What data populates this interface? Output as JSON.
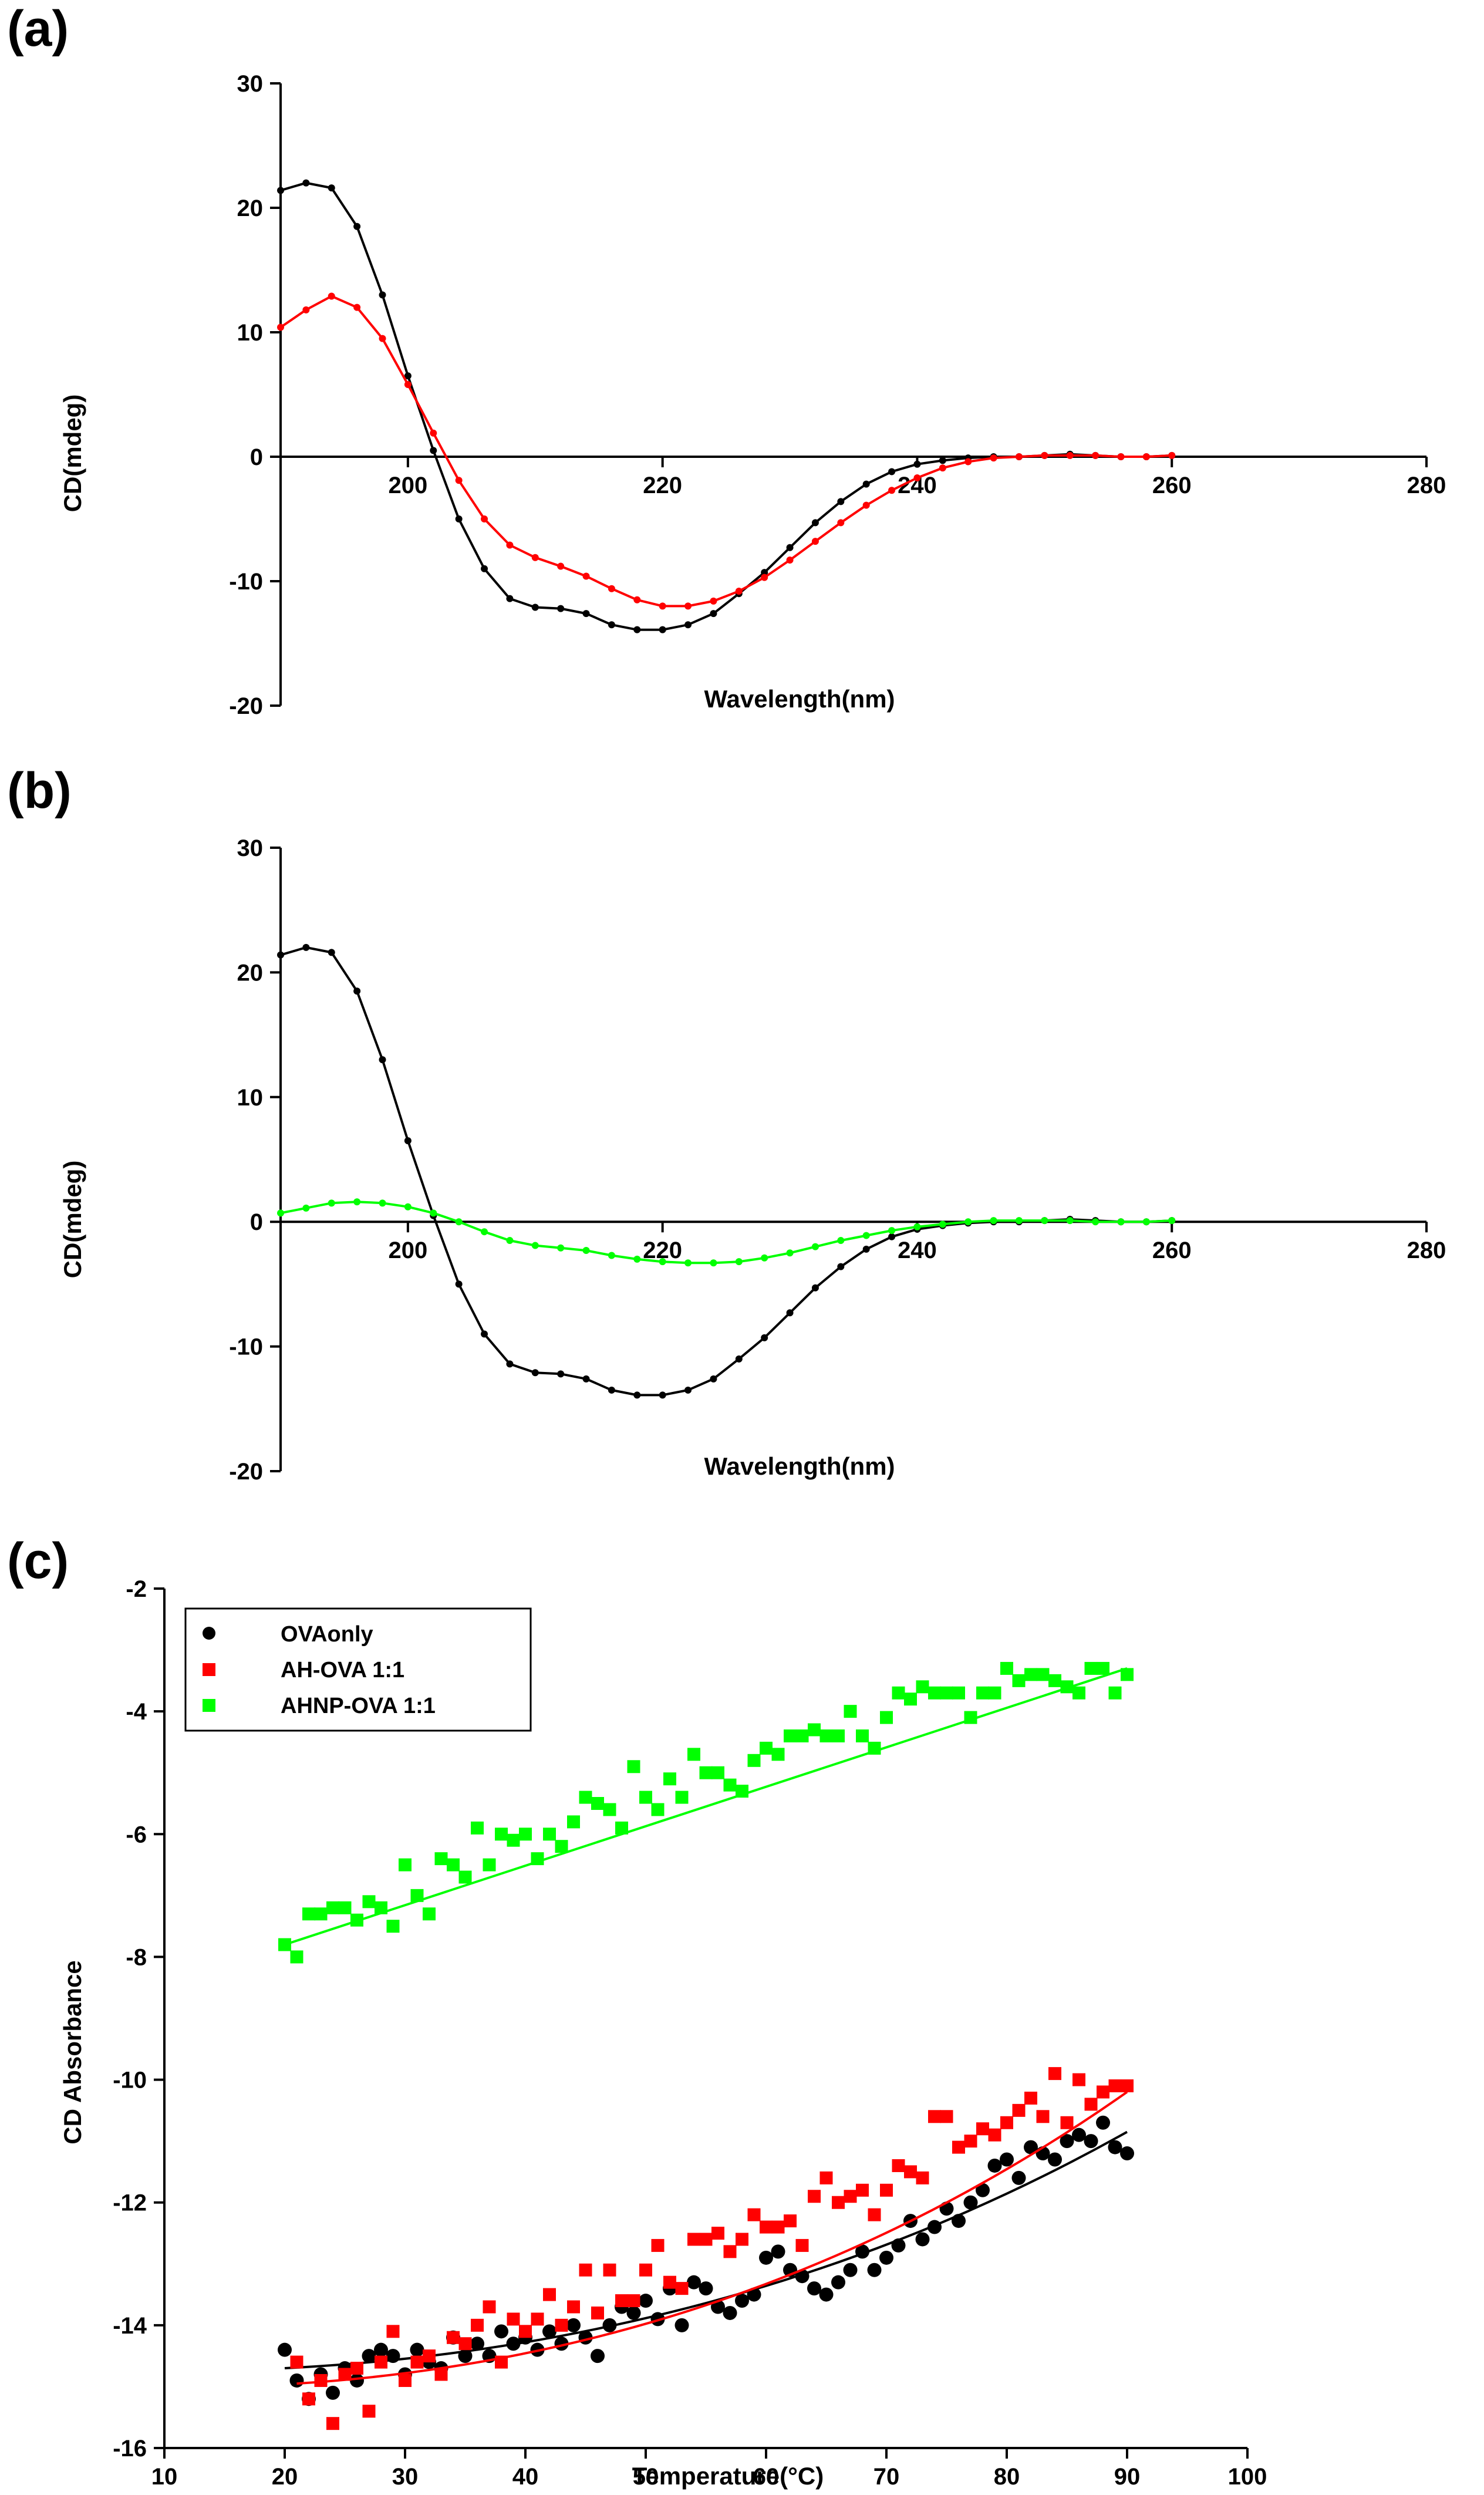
{
  "chart_data": [
    {
      "panel": "(a)",
      "type": "line",
      "xlabel": "Wavelength(nm)",
      "ylabel": "CD(mdeg)",
      "xlim": [
        190,
        280
      ],
      "ylim": [
        -20,
        30
      ],
      "xticks": [
        200,
        220,
        240,
        260,
        280
      ],
      "yticks": [
        -20,
        -10,
        0,
        10,
        20,
        30
      ],
      "series": [
        {
          "name": "OVA only",
          "color": "#000000",
          "x": [
            190,
            192,
            194,
            196,
            198,
            200,
            202,
            204,
            206,
            208,
            210,
            212,
            214,
            216,
            218,
            220,
            222,
            224,
            226,
            228,
            230,
            232,
            234,
            236,
            238,
            240,
            242,
            244,
            246,
            248,
            250,
            252,
            254,
            256,
            258,
            260
          ],
          "values": [
            21.4,
            22.0,
            21.6,
            18.5,
            13.0,
            6.5,
            0.5,
            -5.0,
            -9.0,
            -11.4,
            -12.1,
            -12.2,
            -12.6,
            -13.5,
            -13.9,
            -13.9,
            -13.5,
            -12.6,
            -11.0,
            -9.3,
            -7.3,
            -5.3,
            -3.6,
            -2.2,
            -1.2,
            -0.6,
            -0.3,
            -0.1,
            0.0,
            0.0,
            0.1,
            0.2,
            0.1,
            0.0,
            0.0,
            0.1
          ]
        },
        {
          "name": "AH-OVA 1:1",
          "color": "#ff0000",
          "x": [
            190,
            192,
            194,
            196,
            198,
            200,
            202,
            204,
            206,
            208,
            210,
            212,
            214,
            216,
            218,
            220,
            222,
            224,
            226,
            228,
            230,
            232,
            234,
            236,
            238,
            240,
            242,
            244,
            246,
            248,
            250,
            252,
            254,
            256,
            258,
            260
          ],
          "values": [
            10.4,
            11.8,
            12.9,
            12.0,
            9.5,
            5.8,
            1.9,
            -1.9,
            -5.0,
            -7.1,
            -8.1,
            -8.8,
            -9.6,
            -10.6,
            -11.5,
            -12.0,
            -12.0,
            -11.6,
            -10.8,
            -9.7,
            -8.3,
            -6.8,
            -5.3,
            -3.9,
            -2.7,
            -1.7,
            -0.9,
            -0.4,
            -0.1,
            0.0,
            0.1,
            0.1,
            0.1,
            0.0,
            0.0,
            0.1
          ]
        }
      ]
    },
    {
      "panel": "(b)",
      "type": "line",
      "xlabel": "Wavelength(nm)",
      "ylabel": "CD(mdeg)",
      "xlim": [
        190,
        280
      ],
      "ylim": [
        -20,
        30
      ],
      "xticks": [
        200,
        220,
        240,
        260,
        280
      ],
      "yticks": [
        -20,
        -10,
        0,
        10,
        20,
        30
      ],
      "series": [
        {
          "name": "OVA only",
          "color": "#000000",
          "x": [
            190,
            192,
            194,
            196,
            198,
            200,
            202,
            204,
            206,
            208,
            210,
            212,
            214,
            216,
            218,
            220,
            222,
            224,
            226,
            228,
            230,
            232,
            234,
            236,
            238,
            240,
            242,
            244,
            246,
            248,
            250,
            252,
            254,
            256,
            258,
            260
          ],
          "values": [
            21.4,
            22.0,
            21.6,
            18.5,
            13.0,
            6.5,
            0.5,
            -5.0,
            -9.0,
            -11.4,
            -12.1,
            -12.2,
            -12.6,
            -13.5,
            -13.9,
            -13.9,
            -13.5,
            -12.6,
            -11.0,
            -9.3,
            -7.3,
            -5.3,
            -3.6,
            -2.2,
            -1.2,
            -0.6,
            -0.3,
            -0.1,
            0.0,
            0.0,
            0.1,
            0.2,
            0.1,
            0.0,
            0.0,
            0.1
          ]
        },
        {
          "name": "AHNP-OVA 1:1",
          "color": "#00ff00",
          "x": [
            190,
            192,
            194,
            196,
            198,
            200,
            202,
            204,
            206,
            208,
            210,
            212,
            214,
            216,
            218,
            220,
            222,
            224,
            226,
            228,
            230,
            232,
            234,
            236,
            238,
            240,
            242,
            244,
            246,
            248,
            250,
            252,
            254,
            256,
            258,
            260
          ],
          "values": [
            0.7,
            1.1,
            1.5,
            1.6,
            1.5,
            1.2,
            0.7,
            0.0,
            -0.8,
            -1.5,
            -1.9,
            -2.1,
            -2.3,
            -2.7,
            -3.0,
            -3.2,
            -3.3,
            -3.3,
            -3.2,
            -2.9,
            -2.5,
            -2.0,
            -1.5,
            -1.1,
            -0.7,
            -0.4,
            -0.2,
            0.0,
            0.1,
            0.1,
            0.1,
            0.1,
            0.0,
            0.0,
            0.0,
            0.1
          ]
        }
      ]
    },
    {
      "panel": "(c)",
      "type": "scatter",
      "xlabel": "Temperature(°C)",
      "ylabel": "CD Absorbance",
      "xlim": [
        10,
        100
      ],
      "ylim": [
        -16,
        -2
      ],
      "xticks": [
        10,
        20,
        30,
        40,
        50,
        60,
        70,
        80,
        90,
        100
      ],
      "yticks": [
        -16,
        -14,
        -12,
        -10,
        -8,
        -6,
        -4,
        -2
      ],
      "legend": "top-left",
      "series": [
        {
          "name": "OVAonly",
          "color": "#000000",
          "marker": "circle",
          "fit": "quadratic",
          "fit_values": [
            -14.7,
            -10.85
          ],
          "x": [
            20,
            21,
            22,
            23,
            24,
            25,
            26,
            27,
            28,
            29,
            30,
            31,
            32,
            33,
            34,
            35,
            36,
            37,
            38,
            39,
            40,
            41,
            42,
            43,
            44,
            45,
            46,
            47,
            48,
            49,
            50,
            51,
            52,
            53,
            54,
            55,
            56,
            57,
            58,
            59,
            60,
            61,
            62,
            63,
            64,
            65,
            66,
            67,
            68,
            69,
            70,
            71,
            72,
            73,
            74,
            75,
            76,
            77,
            78,
            79,
            80,
            81,
            82,
            83,
            84,
            85,
            86,
            87,
            88,
            89,
            90
          ],
          "values": [
            -14.4,
            -14.9,
            -15.2,
            -14.8,
            -15.1,
            -14.7,
            -14.9,
            -14.5,
            -14.4,
            -14.5,
            -14.8,
            -14.4,
            -14.6,
            -14.7,
            -14.2,
            -14.5,
            -14.3,
            -14.5,
            -14.1,
            -14.3,
            -14.2,
            -14.4,
            -14.1,
            -14.3,
            -14.0,
            -14.2,
            -14.5,
            -14.0,
            -13.7,
            -13.8,
            -13.6,
            -13.9,
            -13.4,
            -14.0,
            -13.3,
            -13.4,
            -13.7,
            -13.8,
            -13.6,
            -13.5,
            -12.9,
            -12.8,
            -13.1,
            -13.2,
            -13.4,
            -13.5,
            -13.3,
            -13.1,
            -12.8,
            -13.1,
            -12.9,
            -12.7,
            -12.3,
            -12.6,
            -12.4,
            -12.1,
            -12.3,
            -12.0,
            -11.8,
            -11.4,
            -11.3,
            -11.6,
            -11.1,
            -11.2,
            -11.3,
            -11.0,
            -10.9,
            -11.0,
            -10.7,
            -11.1,
            -11.2
          ]
        },
        {
          "name": "AH-OVA 1:1",
          "color": "#ff0000",
          "marker": "square",
          "fit": "quadratic",
          "fit_values": [
            -14.95,
            -10.2
          ],
          "x": [
            21,
            22,
            23,
            24,
            25,
            26,
            27,
            28,
            29,
            30,
            31,
            32,
            33,
            34,
            35,
            36,
            37,
            38,
            39,
            40,
            41,
            42,
            43,
            44,
            45,
            46,
            47,
            48,
            49,
            50,
            51,
            52,
            53,
            54,
            55,
            56,
            57,
            58,
            59,
            60,
            61,
            62,
            63,
            64,
            65,
            66,
            67,
            68,
            69,
            70,
            71,
            72,
            73,
            74,
            75,
            76,
            77,
            78,
            79,
            80,
            81,
            82,
            83,
            84,
            85,
            86,
            87,
            88,
            89,
            90
          ],
          "values": [
            -14.6,
            -15.2,
            -14.9,
            -15.6,
            -14.8,
            -14.7,
            -15.4,
            -14.6,
            -14.1,
            -14.9,
            -14.6,
            -14.5,
            -14.8,
            -14.2,
            -14.3,
            -14.0,
            -13.7,
            -14.6,
            -13.9,
            -14.1,
            -13.9,
            -13.5,
            -14.0,
            -13.7,
            -13.1,
            -13.8,
            -13.1,
            -13.6,
            -13.6,
            -13.1,
            -12.7,
            -13.3,
            -13.4,
            -12.6,
            -12.6,
            -12.5,
            -12.8,
            -12.6,
            -12.2,
            -12.4,
            -12.4,
            -12.3,
            -12.7,
            -11.9,
            -11.6,
            -12.0,
            -11.9,
            -11.8,
            -12.2,
            -11.8,
            -11.4,
            -11.5,
            -11.6,
            -10.6,
            -10.6,
            -11.1,
            -11.0,
            -10.8,
            -10.9,
            -10.7,
            -10.5,
            -10.3,
            -10.6,
            -9.9,
            -10.7,
            -10.0,
            -10.4,
            -10.2,
            -10.1,
            -10.1
          ]
        },
        {
          "name": "AHNP-OVA 1:1",
          "color": "#00ff00",
          "marker": "square",
          "fit": "linear",
          "fit_values": [
            -7.8,
            -3.3
          ],
          "x": [
            20,
            21,
            22,
            23,
            24,
            25,
            26,
            27,
            28,
            29,
            30,
            31,
            32,
            33,
            34,
            35,
            36,
            37,
            38,
            39,
            40,
            41,
            42,
            43,
            44,
            45,
            46,
            47,
            48,
            49,
            50,
            51,
            52,
            53,
            54,
            55,
            56,
            57,
            58,
            59,
            60,
            61,
            62,
            63,
            64,
            65,
            66,
            67,
            68,
            69,
            70,
            71,
            72,
            73,
            74,
            75,
            76,
            77,
            78,
            79,
            80,
            81,
            82,
            83,
            84,
            85,
            86,
            87,
            88,
            89,
            90
          ],
          "values": [
            -7.8,
            -8.0,
            -7.3,
            -7.3,
            -7.2,
            -7.2,
            -7.4,
            -7.1,
            -7.2,
            -7.5,
            -6.5,
            -7.0,
            -7.3,
            -6.4,
            -6.5,
            -6.7,
            -5.9,
            -6.5,
            -6.0,
            -6.1,
            -6.0,
            -6.4,
            -6.0,
            -6.2,
            -5.8,
            -5.4,
            -5.5,
            -5.6,
            -5.9,
            -4.9,
            -5.4,
            -5.6,
            -5.1,
            -5.4,
            -4.7,
            -5.0,
            -5.0,
            -5.2,
            -5.3,
            -4.8,
            -4.6,
            -4.7,
            -4.4,
            -4.4,
            -4.3,
            -4.4,
            -4.4,
            -4.0,
            -4.4,
            -4.6,
            -4.1,
            -3.7,
            -3.8,
            -3.6,
            -3.7,
            -3.7,
            -3.7,
            -4.1,
            -3.7,
            -3.7,
            -3.3,
            -3.5,
            -3.4,
            -3.4,
            -3.5,
            -3.6,
            -3.7,
            -3.3,
            -3.3,
            -3.7,
            -3.4
          ]
        }
      ]
    }
  ]
}
